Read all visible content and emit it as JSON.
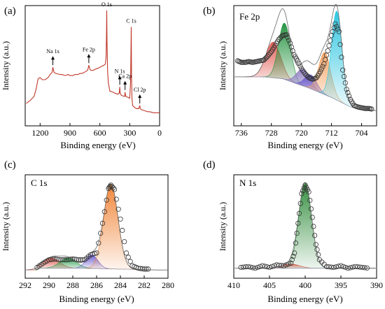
{
  "figure": {
    "panels": [
      "(a)",
      "(b)",
      "(c)",
      "(d)"
    ]
  },
  "chart_data": [
    {
      "panel": "(a)",
      "type": "line",
      "title": "",
      "xlabel": "Binding energy (eV)",
      "ylabel": "Intensity (a.u.)",
      "xlim": [
        1350,
        0
      ],
      "x_reversed": true,
      "xticks": [
        "1200",
        "900",
        "600",
        "300",
        "0"
      ],
      "colors": {
        "line": "#c0392b"
      },
      "annotations": [
        {
          "text": "Na 1s",
          "x": 1072
        },
        {
          "text": "Fe 2p",
          "x": 711
        },
        {
          "text": "O 1s",
          "x": 531
        },
        {
          "text": "N 1s",
          "x": 400
        },
        {
          "text": "Ca 2p",
          "x": 347
        },
        {
          "text": "C 1s",
          "x": 285
        },
        {
          "text": "Cl 2p",
          "x": 199
        }
      ],
      "series": [
        {
          "x": [
            1340,
            1300,
            1260,
            1240,
            1220,
            1200,
            1180,
            1150,
            1120,
            1100,
            1080,
            1072,
            1060,
            1040,
            1000,
            980,
            950,
            920,
            900,
            870,
            850,
            820,
            800,
            780,
            760,
            740,
            725,
            718,
            711,
            700,
            690,
            670,
            650,
            620,
            600,
            580,
            560,
            545,
            537,
            533,
            531,
            528,
            522,
            515,
            500,
            470,
            450,
            420,
            405,
            400,
            396,
            385,
            360,
            350,
            347,
            340,
            320,
            300,
            292,
            288,
            285,
            282,
            278,
            270,
            250,
            230,
            210,
            199,
            195,
            180,
            150,
            120,
            100,
            60,
            30,
            0
          ],
          "y": [
            0.1,
            0.13,
            0.17,
            0.24,
            0.34,
            0.35,
            0.33,
            0.33,
            0.35,
            0.38,
            0.4,
            0.45,
            0.4,
            0.39,
            0.38,
            0.38,
            0.37,
            0.38,
            0.37,
            0.37,
            0.38,
            0.38,
            0.39,
            0.39,
            0.4,
            0.41,
            0.42,
            0.44,
            0.47,
            0.43,
            0.42,
            0.42,
            0.43,
            0.44,
            0.45,
            0.46,
            0.47,
            0.48,
            0.55,
            0.8,
            1.0,
            0.7,
            0.4,
            0.3,
            0.22,
            0.21,
            0.2,
            0.19,
            0.2,
            0.26,
            0.2,
            0.18,
            0.17,
            0.17,
            0.21,
            0.17,
            0.16,
            0.15,
            0.3,
            0.55,
            0.84,
            0.4,
            0.15,
            0.08,
            0.06,
            0.05,
            0.05,
            0.08,
            0.05,
            0.04,
            0.03,
            0.02,
            0.02,
            0.01,
            0.01,
            0.01
          ]
        }
      ]
    },
    {
      "panel": "(b)",
      "type": "line",
      "title": "Fe 2p",
      "xlabel": "Binding energy (eV)",
      "ylabel": "Intensity (a.u.)",
      "xlim": [
        738,
        700
      ],
      "x_reversed": true,
      "xticks": [
        "736",
        "728",
        "720",
        "712",
        "704"
      ],
      "components": [
        {
          "center": 727.5,
          "amp": 0.38,
          "width": 2.0,
          "color": "#e05a50"
        },
        {
          "center": 724.5,
          "amp": 0.6,
          "width": 1.6,
          "color": "#1e8f3a"
        },
        {
          "center": 719.5,
          "amp": 0.18,
          "width": 1.8,
          "color": "#8e7cc3"
        },
        {
          "center": 717.5,
          "amp": 0.15,
          "width": 1.6,
          "color": "#6a5acd"
        },
        {
          "center": 713.8,
          "amp": 0.45,
          "width": 1.6,
          "color": "#f4a261"
        },
        {
          "center": 710.6,
          "amp": 0.95,
          "width": 1.4,
          "color": "#27c4e0"
        }
      ],
      "background": [
        [
          738,
          0.42
        ],
        [
          730,
          0.42
        ],
        [
          725,
          0.4
        ],
        [
          718,
          0.3
        ],
        [
          712,
          0.2
        ],
        [
          707,
          0.1
        ],
        [
          704,
          0.07
        ],
        [
          700,
          0.06
        ]
      ],
      "series": [
        {
          "name": "",
          "x": [
            737,
            736,
            735,
            734,
            733,
            732,
            731,
            730,
            729,
            728,
            727,
            726,
            725,
            724,
            723,
            722,
            721,
            720,
            719,
            718,
            717,
            716,
            715,
            714,
            713,
            712,
            711,
            710,
            709,
            708,
            707,
            706,
            705,
            704,
            703,
            702,
            701
          ],
          "y": [
            0.72,
            0.7,
            0.7,
            0.71,
            0.7,
            0.71,
            0.72,
            0.73,
            0.78,
            0.84,
            0.92,
            1.0,
            1.05,
            1.06,
            0.95,
            0.8,
            0.72,
            0.62,
            0.55,
            0.5,
            0.48,
            0.5,
            0.58,
            0.68,
            0.85,
            1.05,
            1.2,
            1.1,
            0.6,
            0.35,
            0.22,
            0.14,
            0.12,
            0.11,
            0.1,
            0.1,
            0.09
          ]
        }
      ]
    },
    {
      "panel": "(c)",
      "type": "line",
      "title": "C 1s",
      "xlabel": "Binding energy (eV)",
      "ylabel": "Intensity (a.u.)",
      "xlim": [
        292,
        280
      ],
      "x_reversed": true,
      "xticks": [
        "292",
        "290",
        "288",
        "286",
        "284",
        "282",
        "280"
      ],
      "components": [
        {
          "center": 289.8,
          "amp": 0.12,
          "width": 0.7,
          "color": "#e05a50"
        },
        {
          "center": 288.4,
          "amp": 0.12,
          "width": 0.7,
          "color": "#2e9e4f"
        },
        {
          "center": 286.4,
          "amp": 0.16,
          "width": 0.5,
          "color": "#6a5acd"
        },
        {
          "center": 284.8,
          "amp": 1.0,
          "width": 0.6,
          "color": "#f08030"
        }
      ],
      "background": [
        [
          291,
          0.02
        ],
        [
          287,
          0.02
        ],
        [
          284,
          0.01
        ],
        [
          281,
          0.0
        ]
      ],
      "series": [
        {
          "name": "",
          "x": [
            291,
            290.5,
            290,
            289.5,
            289,
            288.5,
            288,
            287.5,
            287,
            286.5,
            286,
            285.5,
            285,
            284.8,
            284.5,
            284,
            283.5,
            283,
            282.5,
            282,
            281.5
          ],
          "y": [
            0.03,
            0.08,
            0.12,
            0.13,
            0.12,
            0.12,
            0.13,
            0.12,
            0.12,
            0.18,
            0.2,
            0.55,
            0.96,
            1.0,
            0.95,
            0.6,
            0.2,
            0.05,
            0.02,
            0.01,
            0.01
          ]
        }
      ]
    },
    {
      "panel": "(d)",
      "type": "line",
      "title": "N 1s",
      "xlabel": "Binding energy (eV)",
      "ylabel": "Intensity (a.u.)",
      "xlim": [
        410,
        390
      ],
      "x_reversed": true,
      "xticks": [
        "410",
        "405",
        "400",
        "395",
        "390"
      ],
      "components": [
        {
          "center": 402.0,
          "amp": 0.05,
          "width": 1.2,
          "color": "#e05a50"
        },
        {
          "center": 400.0,
          "amp": 1.0,
          "width": 0.9,
          "color": "#2e8b3a"
        }
      ],
      "background": [
        [
          409,
          0.02
        ],
        [
          390,
          0.02
        ]
      ],
      "series": [
        {
          "name": "",
          "x": [
            409,
            408,
            407,
            406,
            405,
            404,
            403,
            402,
            401.5,
            401,
            400.5,
            400,
            399.5,
            399,
            398.5,
            398,
            397,
            396,
            395,
            394,
            393,
            392,
            391
          ],
          "y": [
            0.03,
            0.04,
            0.02,
            0.05,
            0.03,
            0.06,
            0.05,
            0.08,
            0.2,
            0.55,
            0.9,
            1.0,
            0.92,
            0.62,
            0.3,
            0.12,
            0.04,
            0.03,
            0.05,
            0.02,
            0.04,
            0.03,
            0.02
          ]
        }
      ]
    }
  ]
}
